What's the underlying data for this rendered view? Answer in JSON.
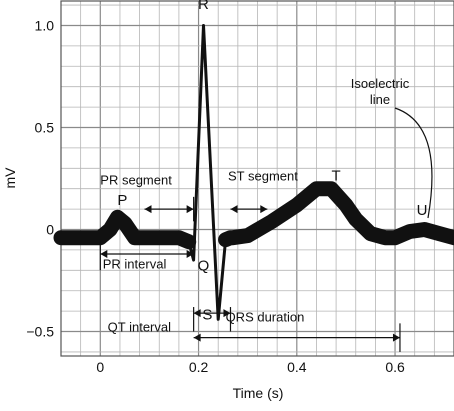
{
  "chart_data": {
    "type": "line",
    "title": "",
    "xlabel": "Time (s)",
    "ylabel": "mV",
    "xlim": [
      -0.08,
      0.72
    ],
    "ylim": [
      -0.62,
      1.12
    ],
    "xticks": [
      0,
      0.2,
      0.4,
      0.6
    ],
    "xtick_labels": [
      "0",
      "0.2",
      "0.4",
      "0.6"
    ],
    "yticks": [
      -0.5,
      0,
      0.5,
      1.0
    ],
    "ytick_labels": [
      "−0.5",
      "0",
      "0.5",
      "1.0"
    ],
    "grid": true,
    "grid_minor_x": 0.04,
    "grid_minor_y": 0.1,
    "series": [
      {
        "x": [
          -0.08,
          0,
          0.02,
          0.035,
          0.05,
          0.07,
          0.09,
          0.12,
          0.16,
          0.18,
          0.19,
          0.21,
          0.24,
          0.255,
          0.265,
          0.27,
          0.3,
          0.35,
          0.4,
          0.44,
          0.47,
          0.5,
          0.52,
          0.55,
          0.58,
          0.6,
          0.63,
          0.66,
          0.69,
          0.72
        ],
        "y": [
          -0.04,
          -0.04,
          0.0,
          0.06,
          0.03,
          -0.04,
          -0.04,
          -0.04,
          -0.04,
          -0.06,
          -0.15,
          1.0,
          -0.44,
          -0.05,
          -0.04,
          -0.04,
          -0.03,
          0.04,
          0.12,
          0.2,
          0.2,
          0.12,
          0.05,
          -0.02,
          -0.04,
          -0.04,
          -0.01,
          0.0,
          -0.02,
          -0.04
        ]
      }
    ],
    "wave_labels": [
      {
        "text": "P",
        "x": 0.045,
        "y": 0.12
      },
      {
        "text": "R",
        "x": 0.21,
        "y": 1.08
      },
      {
        "text": "Q",
        "x": 0.21,
        "y": -0.2
      },
      {
        "text": "S",
        "x": 0.218,
        "y": -0.44
      },
      {
        "text": "T",
        "x": 0.48,
        "y": 0.24
      },
      {
        "text": "U",
        "x": 0.655,
        "y": 0.07
      }
    ],
    "annotations": [
      {
        "text": "PR segment",
        "x1": 0.09,
        "x2": 0.19,
        "y": 0.22
      },
      {
        "text": "ST segment",
        "x1": 0.265,
        "x2": 0.34,
        "y": 0.24
      },
      {
        "text": "PR interval",
        "x1": 0.0,
        "x2": 0.19,
        "y": -0.15
      },
      {
        "text": "QRS duration",
        "x1": 0.19,
        "x2": 0.265,
        "y": -0.57
      },
      {
        "text": "QT interval",
        "x1": 0.19,
        "x2": 0.61,
        "y": -0.62
      },
      {
        "text": "Isoelectric line",
        "x": 0.68,
        "y": 0.6
      }
    ]
  }
}
